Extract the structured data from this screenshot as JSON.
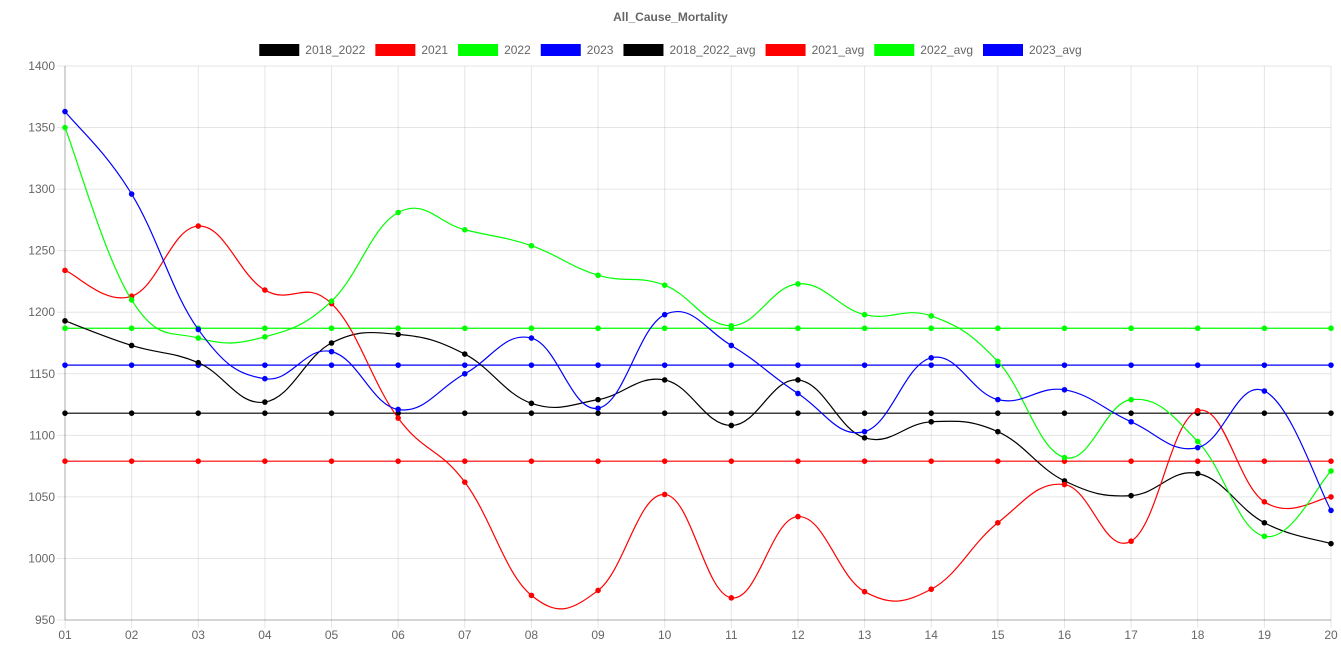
{
  "chart_data": {
    "type": "line",
    "title": "All_Cause_Mortality",
    "xlabel": "",
    "ylabel": "",
    "categories": [
      "01",
      "02",
      "03",
      "04",
      "05",
      "06",
      "07",
      "08",
      "09",
      "10",
      "11",
      "12",
      "13",
      "14",
      "15",
      "16",
      "17",
      "18",
      "19",
      "20"
    ],
    "ylim": [
      950,
      1400
    ],
    "yticks": [
      950,
      1000,
      1050,
      1100,
      1150,
      1200,
      1250,
      1300,
      1350,
      1400
    ],
    "grid": true,
    "legend_position": "top",
    "series": [
      {
        "name": "2018_2022",
        "color": "#000000",
        "values": [
          1193,
          1173,
          1159,
          1127,
          1175,
          1182,
          1166,
          1126,
          1129,
          1145,
          1108,
          1145,
          1098,
          1111,
          1103,
          1063,
          1051,
          1069,
          1029,
          1012
        ]
      },
      {
        "name": "2021",
        "color": "#ff0000",
        "values": [
          1234,
          1213,
          1270,
          1218,
          1207,
          1114,
          1062,
          970,
          974,
          1052,
          968,
          1034,
          973,
          975,
          1029,
          1060,
          1014,
          1120,
          1046,
          1050
        ]
      },
      {
        "name": "2022",
        "color": "#00ff00",
        "values": [
          1350,
          1210,
          1179,
          1180,
          1209,
          1281,
          1267,
          1254,
          1230,
          1222,
          1189,
          1223,
          1198,
          1197,
          1160,
          1082,
          1129,
          1095,
          1018,
          1071
        ]
      },
      {
        "name": "2023",
        "color": "#0000ff",
        "values": [
          1363,
          1296,
          1186,
          1146,
          1168,
          1121,
          1150,
          1179,
          1122,
          1198,
          1173,
          1134,
          1103,
          1163,
          1129,
          1137,
          1111,
          1090,
          1136,
          1039
        ]
      },
      {
        "name": "2018_2022_avg",
        "color": "#000000",
        "avg": true,
        "values": [
          1118,
          1118,
          1118,
          1118,
          1118,
          1118,
          1118,
          1118,
          1118,
          1118,
          1118,
          1118,
          1118,
          1118,
          1118,
          1118,
          1118,
          1118,
          1118,
          1118
        ]
      },
      {
        "name": "2021_avg",
        "color": "#ff0000",
        "avg": true,
        "values": [
          1079,
          1079,
          1079,
          1079,
          1079,
          1079,
          1079,
          1079,
          1079,
          1079,
          1079,
          1079,
          1079,
          1079,
          1079,
          1079,
          1079,
          1079,
          1079,
          1079
        ]
      },
      {
        "name": "2022_avg",
        "color": "#00ff00",
        "avg": true,
        "values": [
          1187,
          1187,
          1187,
          1187,
          1187,
          1187,
          1187,
          1187,
          1187,
          1187,
          1187,
          1187,
          1187,
          1187,
          1187,
          1187,
          1187,
          1187,
          1187,
          1187
        ]
      },
      {
        "name": "2023_avg",
        "color": "#0000ff",
        "avg": true,
        "values": [
          1157,
          1157,
          1157,
          1157,
          1157,
          1157,
          1157,
          1157,
          1157,
          1157,
          1157,
          1157,
          1157,
          1157,
          1157,
          1157,
          1157,
          1157,
          1157,
          1157
        ]
      }
    ]
  }
}
